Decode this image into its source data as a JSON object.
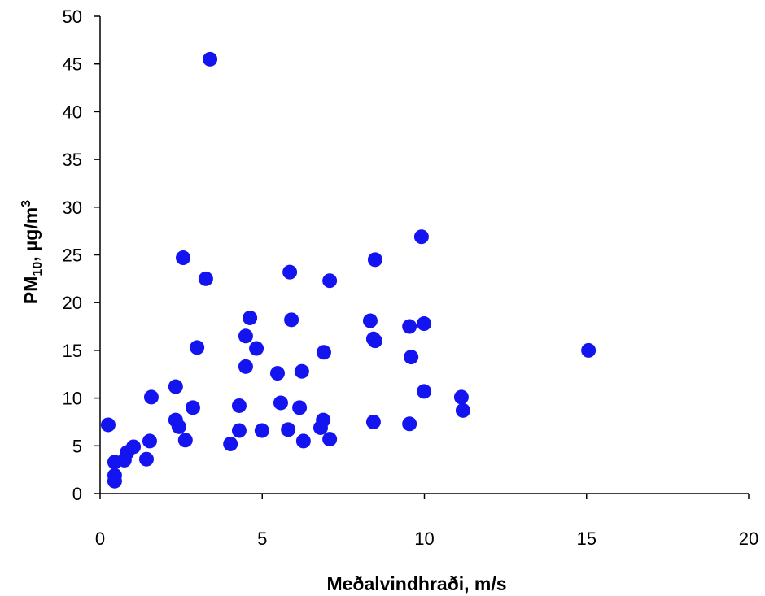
{
  "chart_data": {
    "type": "scatter",
    "xlabel": "Meðalvindhraði, m/s",
    "ylabel": [
      "PM",
      "10",
      ", µg/m",
      "3"
    ],
    "color": "#1414f0",
    "xlim": [
      0,
      20
    ],
    "xticks": [
      0,
      5,
      10,
      15,
      20
    ],
    "ylim": [
      0,
      50
    ],
    "yticks": [
      0,
      5,
      10,
      15,
      20,
      25,
      30,
      35,
      40,
      45,
      50
    ],
    "x": [
      0.25,
      0.45,
      0.45,
      0.45,
      0.75,
      0.83,
      1.03,
      1.43,
      1.53,
      1.58,
      2.33,
      2.33,
      2.43,
      2.63,
      2.56,
      2.86,
      2.99,
      3.26,
      3.39,
      4.02,
      4.29,
      4.29,
      4.49,
      4.49,
      4.62,
      4.82,
      4.99,
      5.47,
      5.57,
      5.8,
      5.85,
      5.9,
      6.15,
      6.22,
      6.27,
      6.8,
      6.88,
      6.9,
      7.08,
      7.08,
      8.33,
      8.43,
      8.48,
      8.43,
      8.48,
      9.54,
      9.54,
      9.59,
      9.91,
      9.99,
      9.99,
      11.14,
      11.19,
      15.06
    ],
    "y": [
      7.2,
      3.3,
      1.9,
      1.3,
      3.5,
      4.3,
      4.9,
      3.6,
      5.5,
      10.1,
      11.2,
      7.7,
      7.0,
      5.6,
      24.7,
      9.0,
      15.3,
      22.5,
      45.5,
      5.2,
      9.2,
      6.6,
      16.5,
      13.3,
      18.4,
      15.2,
      6.6,
      12.6,
      9.5,
      6.7,
      23.2,
      18.2,
      9.0,
      12.8,
      5.5,
      6.9,
      7.7,
      14.8,
      5.7,
      22.3,
      18.1,
      7.5,
      24.5,
      16.2,
      16.0,
      17.5,
      7.3,
      14.3,
      26.9,
      17.8,
      10.7,
      10.1,
      8.7,
      15.0
    ]
  }
}
